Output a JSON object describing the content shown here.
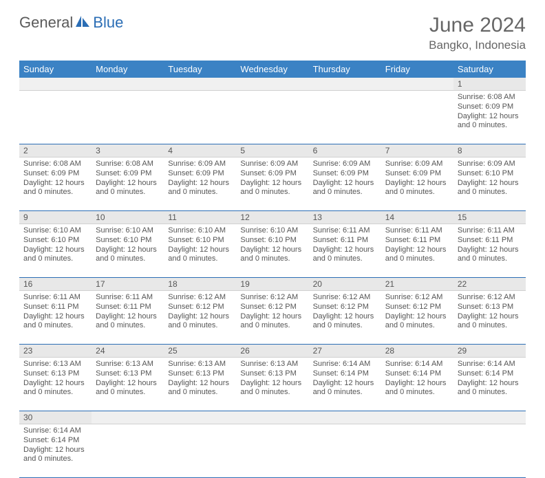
{
  "logo": {
    "part1": "General",
    "part2": "Blue"
  },
  "title": "June 2024",
  "location": "Bangko, Indonesia",
  "colors": {
    "header_bg": "#3b82c4",
    "header_text": "#ffffff",
    "daynum_bg": "#e8e8e8",
    "rule": "#2a6db5",
    "text": "#555555",
    "logo_blue": "#2a6db5",
    "logo_gray": "#5a5a5a"
  },
  "weekdays": [
    "Sunday",
    "Monday",
    "Tuesday",
    "Wednesday",
    "Thursday",
    "Friday",
    "Saturday"
  ],
  "weeks": [
    [
      null,
      null,
      null,
      null,
      null,
      null,
      {
        "n": "1",
        "sr": "6:08 AM",
        "ss": "6:09 PM",
        "dl": "12 hours",
        "dm": "and 0 minutes."
      }
    ],
    [
      {
        "n": "2",
        "sr": "6:08 AM",
        "ss": "6:09 PM",
        "dl": "12 hours",
        "dm": "and 0 minutes."
      },
      {
        "n": "3",
        "sr": "6:08 AM",
        "ss": "6:09 PM",
        "dl": "12 hours",
        "dm": "and 0 minutes."
      },
      {
        "n": "4",
        "sr": "6:09 AM",
        "ss": "6:09 PM",
        "dl": "12 hours",
        "dm": "and 0 minutes."
      },
      {
        "n": "5",
        "sr": "6:09 AM",
        "ss": "6:09 PM",
        "dl": "12 hours",
        "dm": "and 0 minutes."
      },
      {
        "n": "6",
        "sr": "6:09 AM",
        "ss": "6:09 PM",
        "dl": "12 hours",
        "dm": "and 0 minutes."
      },
      {
        "n": "7",
        "sr": "6:09 AM",
        "ss": "6:09 PM",
        "dl": "12 hours",
        "dm": "and 0 minutes."
      },
      {
        "n": "8",
        "sr": "6:09 AM",
        "ss": "6:10 PM",
        "dl": "12 hours",
        "dm": "and 0 minutes."
      }
    ],
    [
      {
        "n": "9",
        "sr": "6:10 AM",
        "ss": "6:10 PM",
        "dl": "12 hours",
        "dm": "and 0 minutes."
      },
      {
        "n": "10",
        "sr": "6:10 AM",
        "ss": "6:10 PM",
        "dl": "12 hours",
        "dm": "and 0 minutes."
      },
      {
        "n": "11",
        "sr": "6:10 AM",
        "ss": "6:10 PM",
        "dl": "12 hours",
        "dm": "and 0 minutes."
      },
      {
        "n": "12",
        "sr": "6:10 AM",
        "ss": "6:10 PM",
        "dl": "12 hours",
        "dm": "and 0 minutes."
      },
      {
        "n": "13",
        "sr": "6:11 AM",
        "ss": "6:11 PM",
        "dl": "12 hours",
        "dm": "and 0 minutes."
      },
      {
        "n": "14",
        "sr": "6:11 AM",
        "ss": "6:11 PM",
        "dl": "12 hours",
        "dm": "and 0 minutes."
      },
      {
        "n": "15",
        "sr": "6:11 AM",
        "ss": "6:11 PM",
        "dl": "12 hours",
        "dm": "and 0 minutes."
      }
    ],
    [
      {
        "n": "16",
        "sr": "6:11 AM",
        "ss": "6:11 PM",
        "dl": "12 hours",
        "dm": "and 0 minutes."
      },
      {
        "n": "17",
        "sr": "6:11 AM",
        "ss": "6:11 PM",
        "dl": "12 hours",
        "dm": "and 0 minutes."
      },
      {
        "n": "18",
        "sr": "6:12 AM",
        "ss": "6:12 PM",
        "dl": "12 hours",
        "dm": "and 0 minutes."
      },
      {
        "n": "19",
        "sr": "6:12 AM",
        "ss": "6:12 PM",
        "dl": "12 hours",
        "dm": "and 0 minutes."
      },
      {
        "n": "20",
        "sr": "6:12 AM",
        "ss": "6:12 PM",
        "dl": "12 hours",
        "dm": "and 0 minutes."
      },
      {
        "n": "21",
        "sr": "6:12 AM",
        "ss": "6:12 PM",
        "dl": "12 hours",
        "dm": "and 0 minutes."
      },
      {
        "n": "22",
        "sr": "6:12 AM",
        "ss": "6:13 PM",
        "dl": "12 hours",
        "dm": "and 0 minutes."
      }
    ],
    [
      {
        "n": "23",
        "sr": "6:13 AM",
        "ss": "6:13 PM",
        "dl": "12 hours",
        "dm": "and 0 minutes."
      },
      {
        "n": "24",
        "sr": "6:13 AM",
        "ss": "6:13 PM",
        "dl": "12 hours",
        "dm": "and 0 minutes."
      },
      {
        "n": "25",
        "sr": "6:13 AM",
        "ss": "6:13 PM",
        "dl": "12 hours",
        "dm": "and 0 minutes."
      },
      {
        "n": "26",
        "sr": "6:13 AM",
        "ss": "6:13 PM",
        "dl": "12 hours",
        "dm": "and 0 minutes."
      },
      {
        "n": "27",
        "sr": "6:14 AM",
        "ss": "6:14 PM",
        "dl": "12 hours",
        "dm": "and 0 minutes."
      },
      {
        "n": "28",
        "sr": "6:14 AM",
        "ss": "6:14 PM",
        "dl": "12 hours",
        "dm": "and 0 minutes."
      },
      {
        "n": "29",
        "sr": "6:14 AM",
        "ss": "6:14 PM",
        "dl": "12 hours",
        "dm": "and 0 minutes."
      }
    ],
    [
      {
        "n": "30",
        "sr": "6:14 AM",
        "ss": "6:14 PM",
        "dl": "12 hours",
        "dm": "and 0 minutes."
      },
      null,
      null,
      null,
      null,
      null,
      null
    ]
  ],
  "labels": {
    "sunrise": "Sunrise:",
    "sunset": "Sunset:",
    "daylight": "Daylight:"
  }
}
